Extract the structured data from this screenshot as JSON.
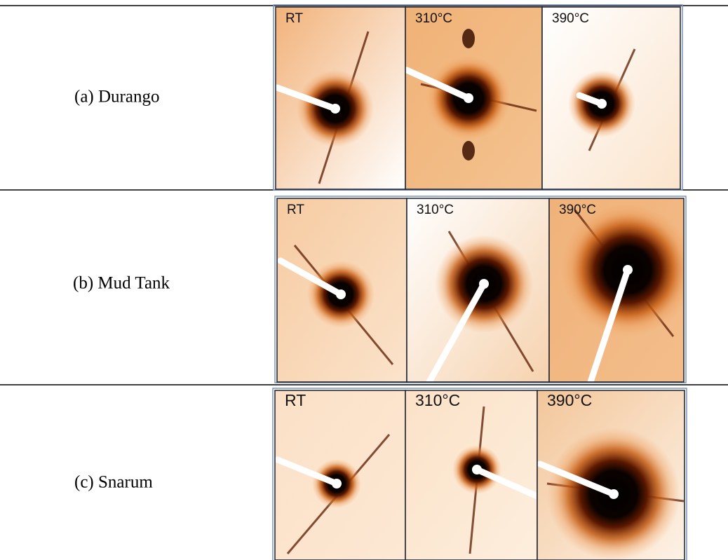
{
  "table": {
    "rows": [
      {
        "label": "(a) Durango",
        "panels": [
          "RT",
          "310°C",
          "390°C"
        ]
      },
      {
        "label": "(b) Mud Tank",
        "panels": [
          "RT",
          "310°C",
          "390°C"
        ]
      },
      {
        "label": "(c) Snarum",
        "panels": [
          "RT",
          "310°C",
          "390°C"
        ]
      }
    ]
  }
}
